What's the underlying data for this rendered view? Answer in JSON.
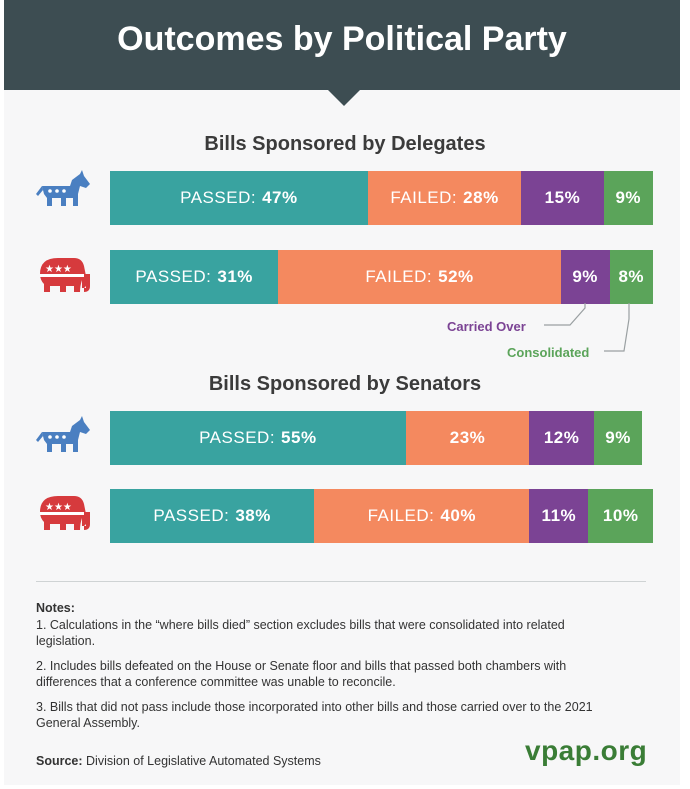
{
  "header": {
    "title": "Outcomes by Political Party"
  },
  "colors": {
    "header_bg": "#3d4d52",
    "passed": "#39a3a0",
    "failed": "#f4895f",
    "carried_over": "#7b4394",
    "consolidated": "#5ba45a",
    "democrat": "#4a7fc1",
    "republican": "#d63a3d"
  },
  "annotations": {
    "carried_over": "Carried Over",
    "consolidated": "Consolidated"
  },
  "chart_data": [
    {
      "type": "bar",
      "stacked": true,
      "orientation": "horizontal",
      "title": "Bills Sponsored by Delegates",
      "categories": [
        "Democrat",
        "Republican"
      ],
      "series": [
        {
          "name": "Passed",
          "values": [
            47,
            31
          ],
          "labels": [
            "PASSED: 47%",
            "PASSED: 31%"
          ]
        },
        {
          "name": "Failed",
          "values": [
            28,
            52
          ],
          "labels": [
            "FAILED: 28%",
            "FAILED: 52%"
          ]
        },
        {
          "name": "Carried Over",
          "values": [
            15,
            9
          ],
          "labels": [
            "15%",
            "9%"
          ]
        },
        {
          "name": "Consolidated",
          "values": [
            9,
            8
          ],
          "labels": [
            "9%",
            "8%"
          ]
        }
      ]
    },
    {
      "type": "bar",
      "stacked": true,
      "orientation": "horizontal",
      "title": "Bills Sponsored by Senators",
      "categories": [
        "Democrat",
        "Republican"
      ],
      "series": [
        {
          "name": "Passed",
          "values": [
            55,
            38
          ],
          "labels": [
            "PASSED: 55%",
            "PASSED: 38%"
          ]
        },
        {
          "name": "Failed",
          "values": [
            23,
            40
          ],
          "labels": [
            "23%",
            "FAILED: 40%"
          ]
        },
        {
          "name": "Carried Over",
          "values": [
            12,
            11
          ],
          "labels": [
            "12%",
            "11%"
          ]
        },
        {
          "name": "Consolidated",
          "values": [
            9,
            10
          ],
          "labels": [
            "9%",
            "10%"
          ]
        }
      ]
    }
  ],
  "notes": {
    "heading": "Notes:",
    "items": [
      "1. Calculations in the “where bills died” section excludes bills that were consolidated into related legislation.",
      "2. Includes bills defeated on the House or Senate floor and bills that passed both chambers with differences that a conference committee was unable to reconcile.",
      "3. Bills that did not pass include those incorporated into other bills and those carried over to the 2021 General Assembly."
    ]
  },
  "source": {
    "label": "Source:",
    "text": "Division of Legislative Automated Systems"
  },
  "logo": "vpap.org"
}
